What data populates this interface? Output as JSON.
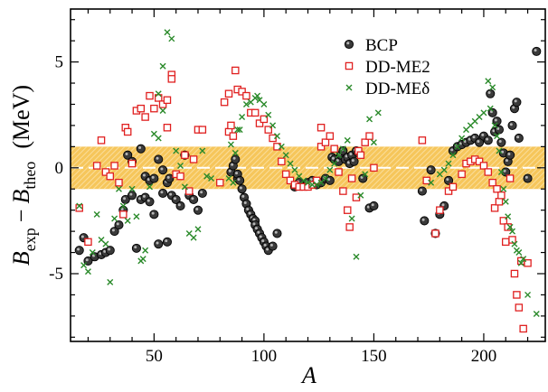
{
  "chart_data": {
    "type": "scatter",
    "xlabel": "A",
    "ylabel": {
      "symbol": "B",
      "sub1": "exp",
      "minus": "−",
      "sub2": "theo",
      "unit": "(MeV)"
    },
    "xlim": [
      12,
      228
    ],
    "ylim": [
      -8.2,
      7.5
    ],
    "xticks": [
      50,
      100,
      150,
      200
    ],
    "yticks": [
      -5,
      0,
      5
    ],
    "grid": false,
    "legend_position": "top-right",
    "band": {
      "range": [
        -1,
        1
      ],
      "color": "#f6c65b",
      "dashed_line_at": 0
    },
    "series": [
      {
        "name": "BCP",
        "marker": "circle",
        "color": "#3a3a3a",
        "points": [
          [
            16,
            -3.9
          ],
          [
            18,
            -3.3
          ],
          [
            20,
            -4.4
          ],
          [
            23,
            -4.2
          ],
          [
            26,
            -4.1
          ],
          [
            28,
            -4.0
          ],
          [
            30,
            -3.9
          ],
          [
            32,
            -3.0
          ],
          [
            34,
            -2.7
          ],
          [
            36,
            -2.0
          ],
          [
            37,
            -1.5
          ],
          [
            38,
            0.6
          ],
          [
            40,
            -1.3
          ],
          [
            40,
            0.3
          ],
          [
            42,
            -3.8
          ],
          [
            44,
            -1.5
          ],
          [
            44,
            0.9
          ],
          [
            46,
            -1.4
          ],
          [
            46,
            -0.4
          ],
          [
            48,
            -0.6
          ],
          [
            48,
            -1.6
          ],
          [
            50,
            -0.5
          ],
          [
            50,
            -2.2
          ],
          [
            52,
            -3.6
          ],
          [
            52,
            0.4
          ],
          [
            54,
            -1.2
          ],
          [
            54,
            -0.1
          ],
          [
            56,
            -3.5
          ],
          [
            56,
            -0.7
          ],
          [
            57,
            -0.5
          ],
          [
            58,
            -1.3
          ],
          [
            60,
            -1.5
          ],
          [
            62,
            -1.8
          ],
          [
            64,
            0.6
          ],
          [
            66,
            -1.3
          ],
          [
            68,
            -1.5
          ],
          [
            70,
            -2.0
          ],
          [
            72,
            -1.2
          ],
          [
            85,
            -0.2
          ],
          [
            86,
            0.1
          ],
          [
            87,
            0.4
          ],
          [
            88,
            -0.5
          ],
          [
            88,
            -0.3
          ],
          [
            89,
            -0.6
          ],
          [
            90,
            -1.0
          ],
          [
            91,
            -1.4
          ],
          [
            92,
            -1.7
          ],
          [
            93,
            -2.0
          ],
          [
            94,
            -2.2
          ],
          [
            95,
            -2.4
          ],
          [
            96,
            -2.5
          ],
          [
            96,
            -2.7
          ],
          [
            97,
            -2.9
          ],
          [
            98,
            -3.1
          ],
          [
            99,
            -3.3
          ],
          [
            100,
            -3.5
          ],
          [
            101,
            -3.7
          ],
          [
            102,
            -3.9
          ],
          [
            104,
            -3.7
          ],
          [
            106,
            -3.1
          ],
          [
            114,
            -0.9
          ],
          [
            116,
            -0.7
          ],
          [
            120,
            -0.7
          ],
          [
            122,
            -0.6
          ],
          [
            124,
            -0.8
          ],
          [
            126,
            -0.7
          ],
          [
            128,
            -0.5
          ],
          [
            130,
            -0.6
          ],
          [
            131,
            0.5
          ],
          [
            132,
            0.4
          ],
          [
            134,
            0.3
          ],
          [
            135,
            0.6
          ],
          [
            136,
            0.8
          ],
          [
            137,
            0.4
          ],
          [
            138,
            0.5
          ],
          [
            139,
            0.2
          ],
          [
            140,
            0.6
          ],
          [
            141,
            0.3
          ],
          [
            142,
            0.8
          ],
          [
            143,
            0.7
          ],
          [
            145,
            -0.5
          ],
          [
            148,
            -1.9
          ],
          [
            150,
            -1.8
          ],
          [
            172,
            -1.1
          ],
          [
            173,
            -2.5
          ],
          [
            176,
            -0.1
          ],
          [
            178,
            -3.1
          ],
          [
            180,
            -2.2
          ],
          [
            182,
            -1.8
          ],
          [
            184,
            -0.6
          ],
          [
            186,
            0.8
          ],
          [
            188,
            1.0
          ],
          [
            190,
            1.1
          ],
          [
            192,
            1.2
          ],
          [
            194,
            1.3
          ],
          [
            196,
            1.4
          ],
          [
            198,
            1.2
          ],
          [
            200,
            1.5
          ],
          [
            202,
            1.3
          ],
          [
            203,
            3.5
          ],
          [
            204,
            2.6
          ],
          [
            205,
            1.7
          ],
          [
            206,
            2.2
          ],
          [
            207,
            1.8
          ],
          [
            208,
            1.2
          ],
          [
            209,
            0.7
          ],
          [
            210,
            -0.2
          ],
          [
            211,
            0.3
          ],
          [
            212,
            0.6
          ],
          [
            213,
            2.0
          ],
          [
            214,
            2.8
          ],
          [
            215,
            3.1
          ],
          [
            216,
            1.4
          ],
          [
            220,
            -0.5
          ],
          [
            224,
            5.5
          ]
        ]
      },
      {
        "name": "DD-ME2",
        "marker": "square",
        "color": "#e02020",
        "points": [
          [
            16,
            -1.9
          ],
          [
            20,
            -3.5
          ],
          [
            24,
            0.1
          ],
          [
            26,
            1.3
          ],
          [
            28,
            -0.2
          ],
          [
            30,
            -0.4
          ],
          [
            32,
            0.1
          ],
          [
            34,
            -0.7
          ],
          [
            36,
            -2.2
          ],
          [
            37,
            1.9
          ],
          [
            38,
            1.7
          ],
          [
            40,
            0.2
          ],
          [
            42,
            2.7
          ],
          [
            44,
            2.8
          ],
          [
            46,
            2.4
          ],
          [
            48,
            3.4
          ],
          [
            50,
            2.8
          ],
          [
            52,
            3.3
          ],
          [
            54,
            3.0
          ],
          [
            56,
            1.9
          ],
          [
            56,
            3.2
          ],
          [
            58,
            4.4
          ],
          [
            58,
            4.2
          ],
          [
            60,
            -0.3
          ],
          [
            62,
            -0.4
          ],
          [
            64,
            0.6
          ],
          [
            66,
            -1.1
          ],
          [
            68,
            0.4
          ],
          [
            70,
            1.8
          ],
          [
            72,
            1.8
          ],
          [
            80,
            -0.7
          ],
          [
            82,
            3.1
          ],
          [
            84,
            3.5
          ],
          [
            84,
            1.7
          ],
          [
            85,
            2.0
          ],
          [
            86,
            1.5
          ],
          [
            87,
            4.6
          ],
          [
            88,
            3.7
          ],
          [
            90,
            3.6
          ],
          [
            92,
            3.4
          ],
          [
            94,
            2.6
          ],
          [
            96,
            2.6
          ],
          [
            98,
            2.1
          ],
          [
            100,
            2.3
          ],
          [
            102,
            1.8
          ],
          [
            104,
            1.4
          ],
          [
            106,
            1.0
          ],
          [
            108,
            0.3
          ],
          [
            110,
            -0.3
          ],
          [
            112,
            -0.6
          ],
          [
            114,
            -0.8
          ],
          [
            116,
            -0.9
          ],
          [
            118,
            -0.9
          ],
          [
            120,
            -0.9
          ],
          [
            122,
            -0.8
          ],
          [
            124,
            -0.6
          ],
          [
            126,
            1.0
          ],
          [
            126,
            1.9
          ],
          [
            128,
            1.2
          ],
          [
            130,
            1.5
          ],
          [
            132,
            0.9
          ],
          [
            134,
            -0.2
          ],
          [
            136,
            -1.1
          ],
          [
            138,
            -2.0
          ],
          [
            139,
            -2.8
          ],
          [
            140,
            -0.5
          ],
          [
            142,
            -1.4
          ],
          [
            143,
            0.8
          ],
          [
            144,
            0.6
          ],
          [
            146,
            1.2
          ],
          [
            148,
            1.5
          ],
          [
            150,
            0.0
          ],
          [
            172,
            1.3
          ],
          [
            174,
            -0.6
          ],
          [
            178,
            -3.1
          ],
          [
            180,
            -2.0
          ],
          [
            184,
            -1.1
          ],
          [
            186,
            -0.9
          ],
          [
            190,
            -0.3
          ],
          [
            192,
            0.2
          ],
          [
            194,
            0.3
          ],
          [
            196,
            0.4
          ],
          [
            198,
            0.3
          ],
          [
            200,
            0.1
          ],
          [
            202,
            -0.2
          ],
          [
            204,
            -0.7
          ],
          [
            205,
            -1.9
          ],
          [
            206,
            -1.0
          ],
          [
            207,
            -1.6
          ],
          [
            208,
            -1.3
          ],
          [
            209,
            -2.5
          ],
          [
            210,
            -3.5
          ],
          [
            211,
            -2.8
          ],
          [
            212,
            -0.5
          ],
          [
            213,
            -3.4
          ],
          [
            214,
            -5.0
          ],
          [
            215,
            -6.0
          ],
          [
            216,
            -6.6
          ],
          [
            217,
            -4.4
          ],
          [
            218,
            -7.6
          ],
          [
            220,
            -4.5
          ]
        ]
      },
      {
        "name": "DD-MEδ",
        "marker": "cross",
        "color": "#2a8a2a",
        "points": [
          [
            16,
            -1.8
          ],
          [
            18,
            -4.6
          ],
          [
            20,
            -4.9
          ],
          [
            22,
            -4.0
          ],
          [
            24,
            -2.2
          ],
          [
            26,
            -3.4
          ],
          [
            28,
            -3.6
          ],
          [
            30,
            -5.4
          ],
          [
            32,
            -2.4
          ],
          [
            34,
            -1.0
          ],
          [
            36,
            -1.8
          ],
          [
            38,
            -2.5
          ],
          [
            40,
            -1.0
          ],
          [
            42,
            -2.3
          ],
          [
            44,
            -4.4
          ],
          [
            45,
            -4.3
          ],
          [
            46,
            -3.9
          ],
          [
            48,
            -0.9
          ],
          [
            50,
            1.6
          ],
          [
            52,
            3.5
          ],
          [
            52,
            1.4
          ],
          [
            54,
            4.8
          ],
          [
            54,
            2.7
          ],
          [
            56,
            6.4
          ],
          [
            58,
            6.1
          ],
          [
            60,
            0.8
          ],
          [
            62,
            0.1
          ],
          [
            64,
            -0.9
          ],
          [
            66,
            -3.1
          ],
          [
            68,
            -3.3
          ],
          [
            70,
            -2.9
          ],
          [
            72,
            0.8
          ],
          [
            74,
            -0.4
          ],
          [
            76,
            -0.5
          ],
          [
            84,
            -0.5
          ],
          [
            85,
            1.1
          ],
          [
            86,
            -0.7
          ],
          [
            87,
            0.7
          ],
          [
            88,
            1.8
          ],
          [
            89,
            1.8
          ],
          [
            90,
            2.4
          ],
          [
            92,
            3.0
          ],
          [
            94,
            3.1
          ],
          [
            96,
            3.3
          ],
          [
            97,
            3.4
          ],
          [
            98,
            3.2
          ],
          [
            100,
            3.0
          ],
          [
            102,
            2.5
          ],
          [
            104,
            2.0
          ],
          [
            106,
            1.5
          ],
          [
            108,
            1.0
          ],
          [
            110,
            0.6
          ],
          [
            112,
            0.2
          ],
          [
            114,
            -0.1
          ],
          [
            116,
            -0.4
          ],
          [
            118,
            -0.6
          ],
          [
            120,
            -0.7
          ],
          [
            122,
            -0.8
          ],
          [
            124,
            -0.8
          ],
          [
            126,
            -0.7
          ],
          [
            128,
            -0.5
          ],
          [
            130,
            -0.1
          ],
          [
            132,
            0.2
          ],
          [
            134,
            0.6
          ],
          [
            136,
            0.9
          ],
          [
            138,
            1.3
          ],
          [
            140,
            -2.4
          ],
          [
            142,
            -4.2
          ],
          [
            144,
            -1.3
          ],
          [
            146,
            -0.3
          ],
          [
            148,
            2.3
          ],
          [
            150,
            1.2
          ],
          [
            152,
            2.6
          ],
          [
            176,
            -0.7
          ],
          [
            180,
            -0.3
          ],
          [
            182,
            -0.1
          ],
          [
            184,
            0.2
          ],
          [
            186,
            0.6
          ],
          [
            188,
            1.0
          ],
          [
            190,
            1.4
          ],
          [
            192,
            1.8
          ],
          [
            194,
            2.0
          ],
          [
            196,
            2.2
          ],
          [
            198,
            2.4
          ],
          [
            200,
            2.6
          ],
          [
            202,
            4.1
          ],
          [
            203,
            2.8
          ],
          [
            204,
            3.8
          ],
          [
            205,
            2.0
          ],
          [
            206,
            1.5
          ],
          [
            207,
            0.8
          ],
          [
            208,
            -0.2
          ],
          [
            209,
            -1.0
          ],
          [
            210,
            -1.6
          ],
          [
            211,
            -2.3
          ],
          [
            212,
            -2.8
          ],
          [
            213,
            -3.0
          ],
          [
            214,
            -3.6
          ],
          [
            215,
            -3.9
          ],
          [
            216,
            -4.0
          ],
          [
            217,
            -4.5
          ],
          [
            218,
            -4.3
          ],
          [
            220,
            -6.0
          ],
          [
            224,
            -6.9
          ]
        ]
      }
    ]
  }
}
